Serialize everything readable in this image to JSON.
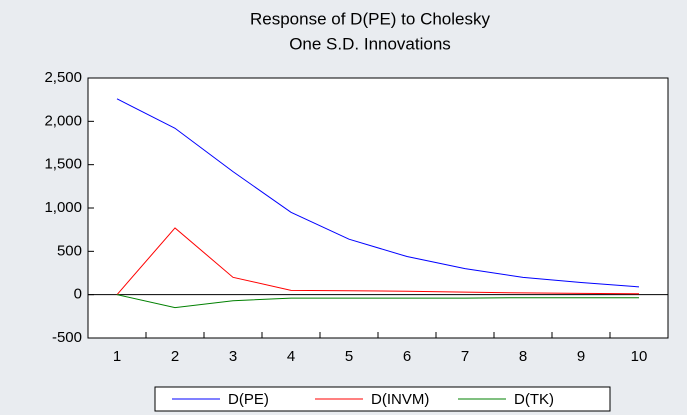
{
  "chart_data": {
    "type": "line",
    "title": [
      "Response of D(PE) to Cholesky",
      "One S.D. Innovations"
    ],
    "categories": [
      1,
      2,
      3,
      4,
      5,
      6,
      7,
      8,
      9,
      10
    ],
    "series": [
      {
        "name": "D(PE)",
        "color": "#0000ff",
        "values": [
          2260,
          1920,
          1420,
          950,
          640,
          440,
          300,
          200,
          140,
          90
        ]
      },
      {
        "name": "D(INVM)",
        "color": "#ff0000",
        "values": [
          0,
          770,
          200,
          50,
          45,
          40,
          30,
          20,
          15,
          10
        ]
      },
      {
        "name": "D(TK)",
        "color": "#008000",
        "values": [
          0,
          -150,
          -70,
          -40,
          -40,
          -40,
          -40,
          -35,
          -35,
          -35
        ]
      }
    ],
    "ylim": [
      -500,
      2500
    ],
    "yticks": [
      {
        "value": -500,
        "label": "-500"
      },
      0,
      500,
      {
        "value": 1000,
        "label": "1,000"
      },
      {
        "value": 1500,
        "label": "1,500"
      },
      {
        "value": 2000,
        "label": "2,000"
      },
      {
        "value": 2500,
        "label": "2,500"
      }
    ],
    "grid": false,
    "zero_line": true,
    "legend": "bottom"
  }
}
